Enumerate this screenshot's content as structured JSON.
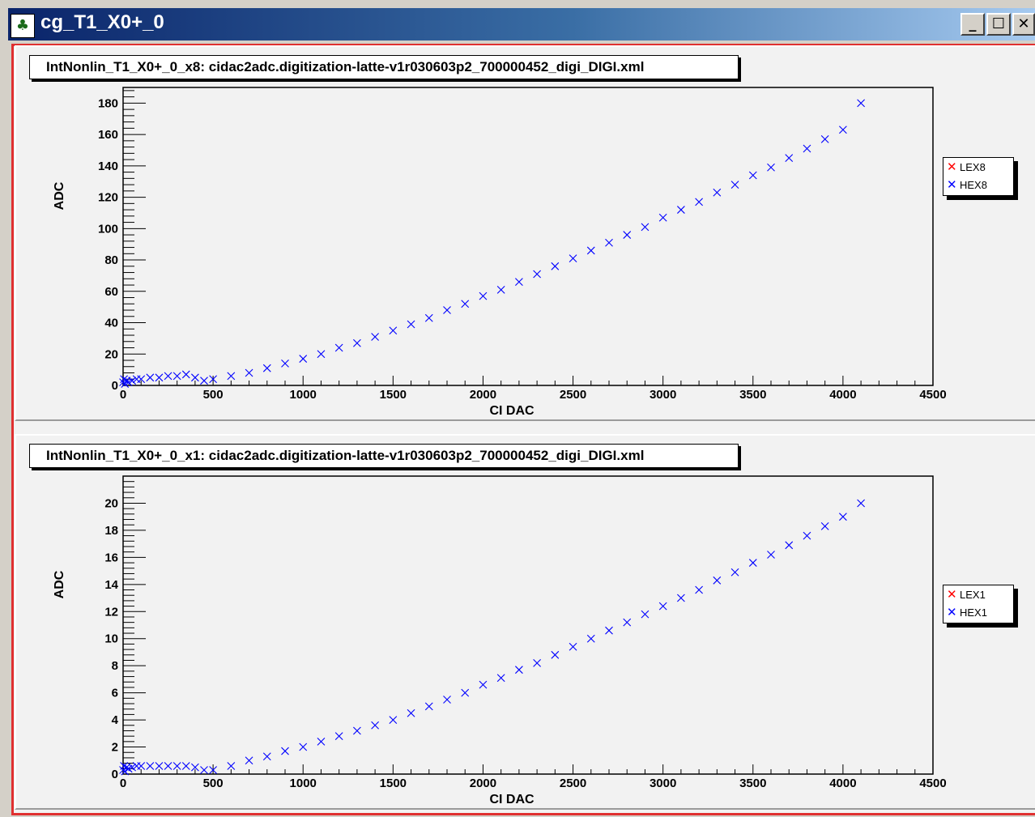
{
  "window": {
    "title": "cg_T1_X0+_0",
    "buttons": {
      "minimize": "_",
      "maximize": "☐",
      "close": "✕"
    }
  },
  "colors": {
    "lex": "#ff0000",
    "hex": "#0000ff",
    "title_bar": "#0a246a",
    "canvas_border": "#e03030"
  },
  "chart_data": [
    {
      "type": "scatter",
      "title": "IntNonlin_T1_X0+_0_x8: cidac2adc.digitization-latte-v1r030603p2_700000452_digi_DIGI.xml",
      "xlabel": "CI DAC",
      "ylabel": "ADC",
      "xlim": [
        0,
        4500
      ],
      "ylim": [
        0,
        190
      ],
      "xticks": [
        0,
        500,
        1000,
        1500,
        2000,
        2500,
        3000,
        3500,
        4000,
        4500
      ],
      "yticks": [
        0,
        20,
        40,
        60,
        80,
        100,
        120,
        140,
        160,
        180
      ],
      "legend": {
        "placement": "right",
        "entries": [
          {
            "label": "LEX8",
            "color": "#ff0000"
          },
          {
            "label": "HEX8",
            "color": "#0000ff"
          }
        ]
      },
      "series": [
        {
          "name": "HEX8",
          "color": "#0000ff",
          "x": [
            0,
            5,
            10,
            20,
            30,
            50,
            75,
            100,
            150,
            200,
            250,
            300,
            350,
            400,
            450,
            500,
            600,
            700,
            800,
            900,
            1000,
            1100,
            1200,
            1300,
            1400,
            1500,
            1600,
            1700,
            1800,
            1900,
            2000,
            2100,
            2200,
            2300,
            2400,
            2500,
            2600,
            2700,
            2800,
            2900,
            3000,
            3100,
            3200,
            3300,
            3400,
            3500,
            3600,
            3700,
            3800,
            3900,
            4000,
            4100
          ],
          "y": [
            2,
            4,
            1,
            3,
            2,
            3,
            4,
            4,
            5,
            5,
            6,
            6,
            7,
            5,
            3,
            4,
            6,
            8,
            11,
            14,
            17,
            20,
            24,
            27,
            31,
            35,
            39,
            43,
            48,
            52,
            57,
            61,
            66,
            71,
            76,
            81,
            86,
            91,
            96,
            101,
            107,
            112,
            117,
            123,
            128,
            134,
            139,
            145,
            151,
            157,
            163,
            180
          ]
        }
      ]
    },
    {
      "type": "scatter",
      "title": "IntNonlin_T1_X0+_0_x1: cidac2adc.digitization-latte-v1r030603p2_700000452_digi_DIGI.xml",
      "xlabel": "CI DAC",
      "ylabel": "ADC",
      "xlim": [
        0,
        4500
      ],
      "ylim": [
        0,
        22
      ],
      "xticks": [
        0,
        500,
        1000,
        1500,
        2000,
        2500,
        3000,
        3500,
        4000,
        4500
      ],
      "yticks": [
        0,
        2,
        4,
        6,
        8,
        10,
        12,
        14,
        16,
        18,
        20
      ],
      "legend": {
        "placement": "right",
        "entries": [
          {
            "label": "LEX1",
            "color": "#ff0000"
          },
          {
            "label": "HEX1",
            "color": "#0000ff"
          }
        ]
      },
      "series": [
        {
          "name": "HEX1",
          "color": "#0000ff",
          "x": [
            0,
            5,
            10,
            20,
            30,
            50,
            75,
            100,
            150,
            200,
            250,
            300,
            350,
            400,
            450,
            500,
            600,
            700,
            800,
            900,
            1000,
            1100,
            1200,
            1300,
            1400,
            1500,
            1600,
            1700,
            1800,
            1900,
            2000,
            2100,
            2200,
            2300,
            2400,
            2500,
            2600,
            2700,
            2800,
            2900,
            3000,
            3100,
            3200,
            3300,
            3400,
            3500,
            3600,
            3700,
            3800,
            3900,
            4000,
            4100
          ],
          "y": [
            0.3,
            0.6,
            0.2,
            0.5,
            0.4,
            0.5,
            0.6,
            0.6,
            0.6,
            0.6,
            0.6,
            0.6,
            0.6,
            0.5,
            0.3,
            0.3,
            0.6,
            1.0,
            1.3,
            1.7,
            2.0,
            2.4,
            2.8,
            3.2,
            3.6,
            4.0,
            4.5,
            5.0,
            5.5,
            6.0,
            6.6,
            7.1,
            7.7,
            8.2,
            8.8,
            9.4,
            10.0,
            10.6,
            11.2,
            11.8,
            12.4,
            13.0,
            13.6,
            14.3,
            14.9,
            15.6,
            16.2,
            16.9,
            17.6,
            18.3,
            19.0,
            20.0
          ]
        }
      ]
    }
  ]
}
